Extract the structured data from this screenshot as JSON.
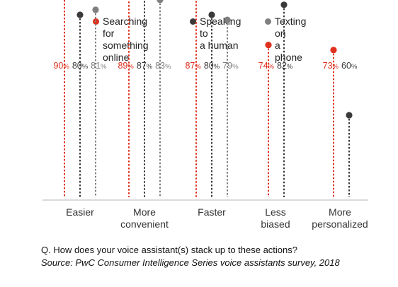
{
  "chart_data": {
    "type": "lollipop",
    "categories": [
      [
        "Easier"
      ],
      [
        "More",
        "convenient"
      ],
      [
        "Faster"
      ],
      [
        "Less",
        "biased"
      ],
      [
        "More",
        "personalized"
      ]
    ],
    "series": [
      {
        "name": "Searching for\nsomething online",
        "color": "#e0301e",
        "values": [
          90,
          89,
          87,
          74,
          73
        ]
      },
      {
        "name": "Speaking to\na human",
        "color": "#3a3a3a",
        "values": [
          80,
          87,
          80,
          82,
          60
        ]
      },
      {
        "name": "Texting on\na phone",
        "color": "#7f7f7f",
        "values": [
          81,
          83,
          79,
          null,
          null
        ]
      }
    ],
    "value_suffix": "%"
  },
  "footer": {
    "question": "Q. How does your voice assistant(s) stack up to these actions?",
    "source": "Source: PwC Consumer Intelligence Series voice assistants survey, 2018"
  }
}
